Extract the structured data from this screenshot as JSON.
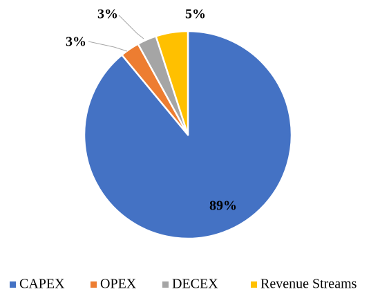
{
  "chart_data": {
    "type": "pie",
    "categories": [
      "CAPEX",
      "OPEX",
      "DECEX",
      "Revenue Streams"
    ],
    "values": [
      89,
      3,
      3,
      5
    ],
    "data_labels": [
      "89%",
      "3%",
      "3%",
      "5%"
    ],
    "colors": [
      "#4472C4",
      "#ED7D31",
      "#A5A5A5",
      "#FFC000"
    ],
    "legend_position": "bottom",
    "title": ""
  }
}
